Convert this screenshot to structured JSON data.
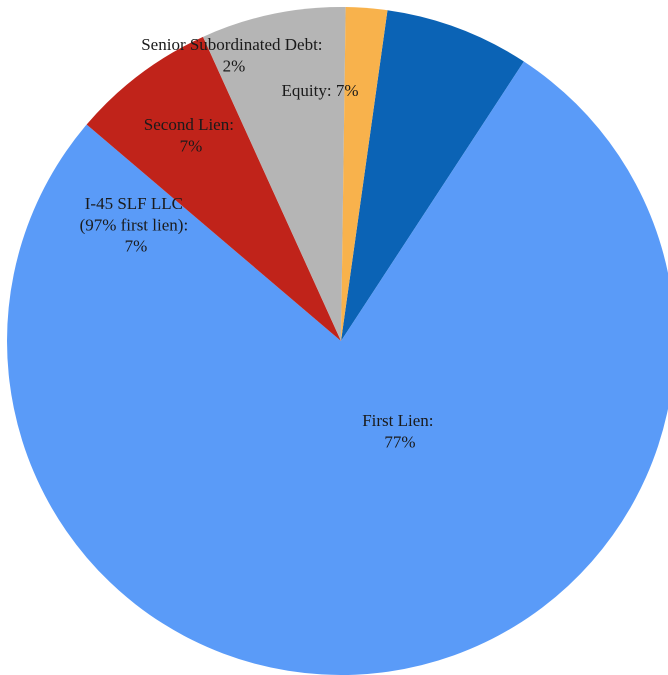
{
  "chart_data": {
    "type": "pie",
    "slices": [
      {
        "label_line1": "Equity: 7%",
        "label_line2": "",
        "label_line3": "",
        "value": 7,
        "color": "#0b63b5"
      },
      {
        "label_line1": "First Lien:",
        "label_line2": "77%",
        "label_line3": "",
        "value": 77,
        "color": "#5a9bf8"
      },
      {
        "label_line1": "I-45 SLF LLC",
        "label_line2": "(97% first lien):",
        "label_line3": "7%",
        "value": 7,
        "color": "#c0231a"
      },
      {
        "label_line1": "Second Lien:",
        "label_line2": "7%",
        "label_line3": "",
        "value": 7,
        "color": "#b5b5b5"
      },
      {
        "label_line1": "Senior Subordinated Debt:",
        "label_line2": "2%",
        "label_line3": "",
        "value": 2,
        "color": "#f8b24c"
      }
    ]
  }
}
